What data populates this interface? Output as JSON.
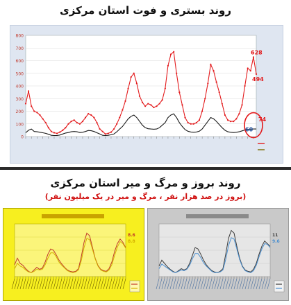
{
  "headers": {
    "title_top": "روند بستری و فوت استان مرکزی",
    "title_bottom": "روند بروز و مرگ و میر استان مرکزی",
    "subtitle_bottom": "(بروز در صد هزار نفر ، مرگ و میر در یک میلیون نفر)"
  },
  "colors": {
    "hosp": "#e31a1c",
    "death": "#1a1a1a",
    "highlight": "#e31a1c",
    "panel_yellow": "#f7ef1f",
    "panel_gray": "#c9c9c9",
    "incidence_gray": "#3a3a3a",
    "mortality_blue": "#4a8fd0"
  },
  "chart_data": [
    {
      "type": "line",
      "ylim": [
        0,
        800
      ],
      "yticks": [
        0,
        100,
        200,
        300,
        400,
        500,
        600,
        700,
        800
      ],
      "annotations": [
        {
          "text": "628",
          "series": "hospitalized"
        },
        {
          "text": "494",
          "series": "hospitalized"
        },
        {
          "text": "74",
          "series": "hospitalized"
        },
        {
          "text": "60",
          "series": "deaths"
        }
      ],
      "series": [
        {
          "name": "",
          "color": "#e31a1c",
          "values": [
            260,
            360,
            240,
            200,
            190,
            170,
            140,
            110,
            70,
            40,
            30,
            25,
            35,
            50,
            70,
            100,
            120,
            130,
            110,
            100,
            120,
            150,
            180,
            170,
            150,
            110,
            60,
            40,
            20,
            25,
            35,
            60,
            100,
            150,
            210,
            280,
            380,
            470,
            500,
            420,
            320,
            270,
            240,
            260,
            250,
            230,
            240,
            260,
            290,
            380,
            560,
            650,
            670,
            500,
            350,
            250,
            150,
            110,
            100,
            100,
            110,
            130,
            200,
            300,
            420,
            570,
            520,
            430,
            350,
            260,
            170,
            130,
            120,
            120,
            140,
            180,
            250,
            400,
            540,
            520,
            628,
            494
          ]
        },
        {
          "name": "",
          "color": "#1a1a1a",
          "values": [
            30,
            50,
            60,
            40,
            38,
            34,
            30,
            25,
            18,
            10,
            8,
            8,
            12,
            20,
            28,
            32,
            38,
            40,
            38,
            32,
            34,
            40,
            48,
            46,
            40,
            30,
            20,
            10,
            8,
            10,
            14,
            20,
            38,
            60,
            80,
            110,
            140,
            160,
            170,
            150,
            120,
            90,
            70,
            62,
            60,
            58,
            60,
            70,
            90,
            110,
            150,
            170,
            180,
            150,
            110,
            80,
            55,
            42,
            36,
            34,
            36,
            42,
            60,
            90,
            120,
            150,
            140,
            120,
            95,
            70,
            50,
            38,
            34,
            32,
            34,
            38,
            45,
            52,
            56,
            58,
            60,
            60
          ]
        }
      ]
    },
    {
      "type": "line",
      "ylim": [
        0,
        80
      ],
      "annotations": [
        {
          "text": "8.6",
          "series": "mortality"
        },
        {
          "text": "8.8",
          "series": "incidence"
        }
      ],
      "series": [
        {
          "name": "",
          "color": "#c0392b",
          "values": [
            18,
            28,
            20,
            17,
            12,
            8,
            6,
            10,
            14,
            11,
            13,
            22,
            34,
            42,
            40,
            33,
            25,
            19,
            14,
            10,
            8,
            7,
            8,
            12,
            30,
            52,
            66,
            62,
            45,
            28,
            17,
            11,
            9,
            8,
            12,
            22,
            38,
            50,
            57,
            52,
            44
          ]
        },
        {
          "name": "",
          "color": "#d4b000",
          "values": [
            12,
            20,
            16,
            14,
            10,
            7,
            6,
            8,
            11,
            10,
            11,
            18,
            28,
            36,
            36,
            30,
            22,
            17,
            13,
            9,
            7,
            6,
            7,
            10,
            24,
            44,
            58,
            56,
            42,
            27,
            16,
            10,
            8,
            7,
            10,
            18,
            32,
            45,
            53,
            50,
            43
          ]
        }
      ]
    },
    {
      "type": "line",
      "ylim": [
        0,
        80
      ],
      "annotations": [
        {
          "text": "11",
          "series": "mortality"
        },
        {
          "text": "9.6",
          "series": "incidence"
        }
      ],
      "series": [
        {
          "name": "",
          "color": "#3a3a3a",
          "values": [
            16,
            25,
            20,
            15,
            11,
            8,
            6,
            9,
            12,
            10,
            12,
            20,
            32,
            44,
            42,
            34,
            25,
            18,
            13,
            9,
            7,
            6,
            8,
            12,
            34,
            58,
            70,
            66,
            46,
            28,
            16,
            10,
            8,
            7,
            11,
            20,
            34,
            46,
            54,
            50,
            46
          ]
        },
        {
          "name": "",
          "color": "#4a8fd0",
          "values": [
            12,
            19,
            16,
            13,
            10,
            7,
            6,
            8,
            10,
            9,
            11,
            17,
            27,
            35,
            35,
            29,
            21,
            16,
            12,
            8,
            6,
            6,
            7,
            10,
            26,
            47,
            59,
            57,
            42,
            26,
            15,
            9,
            7,
            6,
            9,
            17,
            30,
            42,
            50,
            49,
            44
          ]
        }
      ]
    }
  ]
}
